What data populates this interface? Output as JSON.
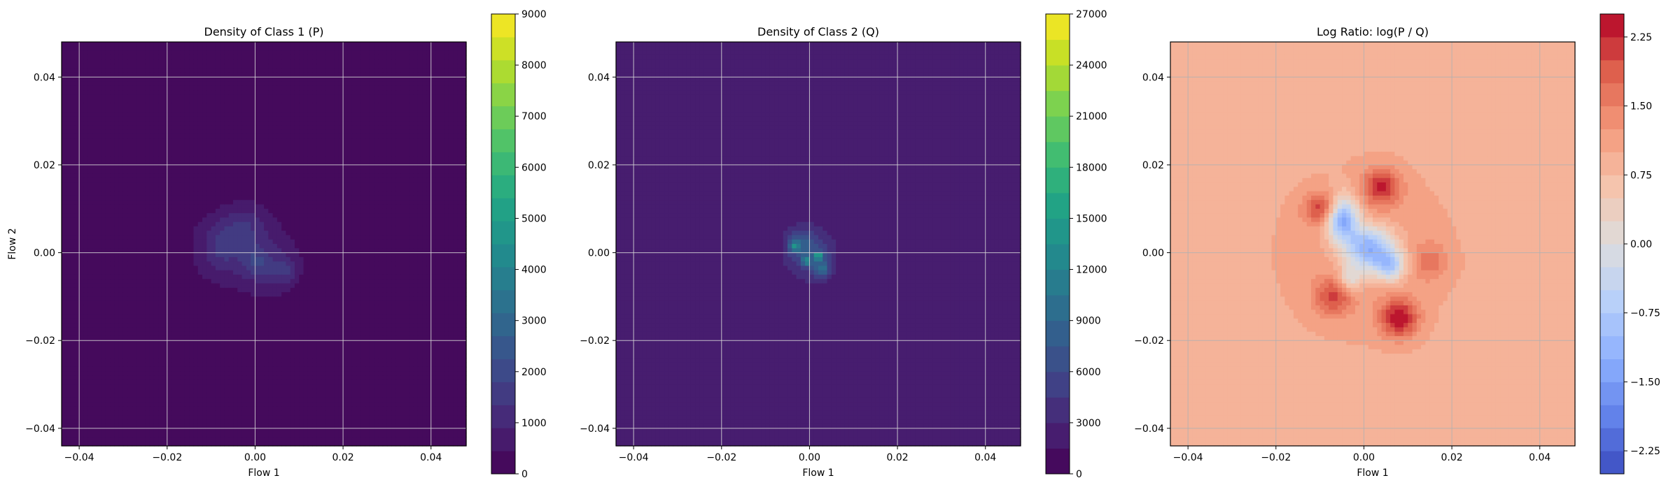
{
  "chart_data": [
    {
      "type": "heatmap",
      "title": "Density of Class 1 (P)",
      "xlabel": "Flow 1",
      "ylabel": "Flow 2",
      "xlim": [
        -0.044,
        0.048
      ],
      "ylim": [
        -0.044,
        0.048
      ],
      "xticks": [
        -0.04,
        -0.02,
        0.0,
        0.02,
        0.04
      ],
      "yticks": [
        -0.04,
        -0.02,
        0.0,
        0.02,
        0.04
      ],
      "xtick_labels": [
        "−0.04",
        "−0.02",
        "0.00",
        "0.02",
        "0.04"
      ],
      "ytick_labels": [
        "−0.04",
        "−0.02",
        "0.00",
        "0.02",
        "0.04"
      ],
      "grid": true,
      "colormap": "viridis",
      "colorbar": {
        "range": [
          0,
          9000
        ],
        "ticks": [
          0,
          1000,
          2000,
          3000,
          4000,
          5000,
          6000,
          7000,
          8000,
          9000
        ],
        "tick_labels": [
          "0",
          "1000",
          "2000",
          "3000",
          "4000",
          "5000",
          "6000",
          "7000",
          "8000",
          "9000"
        ],
        "levels": 20
      },
      "background_value": 0,
      "blobs": [
        {
          "x": -0.003,
          "y": 0.001,
          "sx": 0.0085,
          "sy": 0.0075,
          "value": 900
        },
        {
          "x": -0.006,
          "y": 0.004,
          "sx": 0.004,
          "sy": 0.003,
          "value": 600
        },
        {
          "x": 0.004,
          "y": -0.004,
          "sx": 0.004,
          "sy": 0.004,
          "value": 700
        },
        {
          "x": -0.002,
          "y": 0.007,
          "sx": 0.003,
          "sy": 0.003,
          "value": 500
        },
        {
          "x": 0.0,
          "y": -0.002,
          "sx": 0.002,
          "sy": 0.002,
          "value": 800
        },
        {
          "x": -0.008,
          "y": -0.001,
          "sx": 0.003,
          "sy": 0.003,
          "value": 500
        },
        {
          "x": 0.007,
          "y": -0.004,
          "sx": 0.002,
          "sy": 0.002,
          "value": 600
        }
      ]
    },
    {
      "type": "heatmap",
      "title": "Density of Class 2 (Q)",
      "xlabel": "Flow 1",
      "ylabel": "",
      "xlim": [
        -0.044,
        0.048
      ],
      "ylim": [
        -0.044,
        0.048
      ],
      "xticks": [
        -0.04,
        -0.02,
        0.0,
        0.02,
        0.04
      ],
      "yticks": [
        -0.04,
        -0.02,
        0.0,
        0.02,
        0.04
      ],
      "xtick_labels": [
        "−0.04",
        "−0.02",
        "0.00",
        "0.02",
        "0.04"
      ],
      "ytick_labels": [
        "−0.04",
        "−0.02",
        "0.00",
        "0.02",
        "0.04"
      ],
      "grid": true,
      "colormap": "viridis",
      "colorbar": {
        "range": [
          0,
          27000
        ],
        "ticks": [
          0,
          3000,
          6000,
          9000,
          12000,
          15000,
          18000,
          21000,
          24000,
          27000
        ],
        "tick_labels": [
          "0",
          "3000",
          "6000",
          "9000",
          "12000",
          "15000",
          "18000",
          "21000",
          "24000",
          "27000"
        ],
        "levels": 18
      },
      "background_value": 1500,
      "blobs": [
        {
          "x": 0.0,
          "y": 0.0,
          "sx": 0.0045,
          "sy": 0.005,
          "value": 3500
        },
        {
          "x": -0.002,
          "y": 0.002,
          "sx": 0.002,
          "sy": 0.002,
          "value": 4000
        },
        {
          "x": 0.002,
          "y": -0.002,
          "sx": 0.0018,
          "sy": 0.002,
          "value": 3500
        },
        {
          "x": -0.0035,
          "y": 0.0015,
          "sx": 0.0008,
          "sy": 0.0008,
          "value": 7500
        },
        {
          "x": -0.0008,
          "y": -0.0018,
          "sx": 0.0007,
          "sy": 0.0007,
          "value": 8000
        },
        {
          "x": 0.002,
          "y": -0.0008,
          "sx": 0.0005,
          "sy": 0.0005,
          "value": 13000
        },
        {
          "x": 0.003,
          "y": -0.004,
          "sx": 0.001,
          "sy": 0.001,
          "value": 5000
        }
      ]
    },
    {
      "type": "heatmap",
      "title": "Log Ratio: log(P / Q)",
      "xlabel": "Flow 1",
      "ylabel": "",
      "xlim": [
        -0.044,
        0.048
      ],
      "ylim": [
        -0.044,
        0.048
      ],
      "xticks": [
        -0.04,
        -0.02,
        0.0,
        0.02,
        0.04
      ],
      "yticks": [
        -0.04,
        -0.02,
        0.0,
        0.02,
        0.04
      ],
      "xtick_labels": [
        "−0.04",
        "−0.02",
        "0.00",
        "0.02",
        "0.04"
      ],
      "ytick_labels": [
        "−0.04",
        "−0.02",
        "0.00",
        "0.02",
        "0.04"
      ],
      "grid": true,
      "colormap": "coolwarm",
      "colorbar": {
        "range": [
          -2.5,
          2.5
        ],
        "ticks": [
          -2.25,
          -1.5,
          -0.75,
          0.0,
          0.75,
          1.5,
          2.25
        ],
        "tick_labels": [
          "−2.25",
          "−1.50",
          "−0.75",
          "0.00",
          "0.75",
          "1.50",
          "2.25"
        ],
        "levels": 20
      },
      "background_value": 0.85,
      "blobs": [
        {
          "x": 0.0,
          "y": 0.0,
          "sx": 0.016,
          "sy": 0.016,
          "value": 0.35
        },
        {
          "x": -0.009,
          "y": 0.01,
          "sx": 0.003,
          "sy": 0.0025,
          "value": 1.3
        },
        {
          "x": 0.004,
          "y": 0.015,
          "sx": 0.003,
          "sy": 0.003,
          "value": 1.3
        },
        {
          "x": 0.008,
          "y": -0.015,
          "sx": 0.003,
          "sy": 0.003,
          "value": 1.5
        },
        {
          "x": -0.007,
          "y": -0.01,
          "sx": 0.003,
          "sy": 0.003,
          "value": 1.0
        },
        {
          "x": 0.015,
          "y": -0.002,
          "sx": 0.003,
          "sy": 0.003,
          "value": 0.6
        },
        {
          "x": -0.005,
          "y": 0.008,
          "sx": 0.0025,
          "sy": 0.0035,
          "value": -2.6
        },
        {
          "x": 0.001,
          "y": 0.001,
          "sx": 0.004,
          "sy": 0.0035,
          "value": -2.4
        },
        {
          "x": 0.006,
          "y": -0.003,
          "sx": 0.0025,
          "sy": 0.0025,
          "value": -1.6
        },
        {
          "x": -0.003,
          "y": -0.006,
          "sx": 0.002,
          "sy": 0.002,
          "value": -1.0
        }
      ]
    }
  ]
}
